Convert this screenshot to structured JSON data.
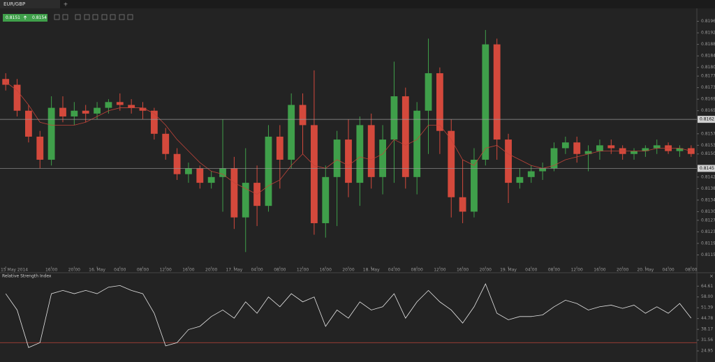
{
  "ui": {
    "tabs": [
      "EUR/GBP",
      "+"
    ],
    "quote": {
      "bid": "0.8151",
      "ask": "0.8154"
    }
  },
  "chart_data": [
    {
      "type": "candlestick",
      "up_color": "#3f9f4a",
      "down_color": "#d4493c",
      "ylim": [
        0.8111,
        0.82
      ],
      "yticks": [
        0.8196,
        0.8192,
        0.8188,
        0.8184,
        {
          "value": 0.818,
          "label": "0.8180"
        },
        0.8177,
        0.8173,
        0.8169,
        0.8165,
        0.8157,
        0.8153,
        {
          "value": 0.815,
          "label": "0.8150"
        },
        0.8142,
        0.8138,
        0.8134,
        {
          "value": 0.813,
          "label": "0.8130"
        },
        0.8127,
        0.8123,
        0.8119,
        0.8115
      ],
      "xticks": [
        {
          "value": 0,
          "label": "15 May 2014"
        },
        {
          "value": 4,
          "label": "16:00"
        },
        {
          "value": 6,
          "label": "20:00"
        },
        {
          "value": 8,
          "label": "16. May"
        },
        {
          "value": 10,
          "label": "04:00"
        },
        {
          "value": 12,
          "label": "08:00"
        },
        {
          "value": 14,
          "label": "12:00"
        },
        {
          "value": 16,
          "label": "16:00"
        },
        {
          "value": 18,
          "label": "20:00"
        },
        {
          "value": 20,
          "label": "17. May"
        },
        {
          "value": 22,
          "label": "04:00"
        },
        {
          "value": 24,
          "label": "08:00"
        },
        {
          "value": 26,
          "label": "12:00"
        },
        {
          "value": 28,
          "label": "16:00"
        },
        {
          "value": 30,
          "label": "20:00"
        },
        {
          "value": 32,
          "label": "18. May"
        },
        {
          "value": 34,
          "label": "04:00"
        },
        {
          "value": 36,
          "label": "08:00"
        },
        {
          "value": 38,
          "label": "12:00"
        },
        {
          "value": 40,
          "label": "16:00"
        },
        {
          "value": 42,
          "label": "20:00"
        },
        {
          "value": 44,
          "label": "19. May"
        },
        {
          "value": 46,
          "label": "04:00"
        },
        {
          "value": 48,
          "label": "08:00"
        },
        {
          "value": 50,
          "label": "12:00"
        },
        {
          "value": 52,
          "label": "16:00"
        },
        {
          "value": 54,
          "label": "20:00"
        },
        {
          "value": 56,
          "label": "20. May"
        },
        {
          "value": 58,
          "label": "04:00"
        },
        {
          "value": 60,
          "label": "08:00"
        }
      ],
      "price_lines": [
        0.8162,
        0.8145
      ],
      "open": [
        0.8176,
        0.8174,
        0.8165,
        0.8156,
        0.8148,
        0.8166,
        0.8163,
        0.8165,
        0.8164,
        0.8166,
        0.8168,
        0.8167,
        0.8166,
        0.8165,
        0.8157,
        0.815,
        0.8143,
        0.8145,
        0.814,
        0.8142,
        0.8145,
        0.8128,
        0.814,
        0.8132,
        0.8156,
        0.8148,
        0.8167,
        0.816,
        0.8126,
        0.8142,
        0.8155,
        0.814,
        0.816,
        0.8142,
        0.8155,
        0.817,
        0.8142,
        0.8165,
        0.8178,
        0.8158,
        0.8135,
        0.813,
        0.8148,
        0.8188,
        0.8155,
        0.814,
        0.8142,
        0.8144,
        0.8145,
        0.8152,
        0.8154,
        0.815,
        0.8151,
        0.8153,
        0.8152,
        0.815,
        0.8151,
        0.8152,
        0.8153,
        0.8151,
        0.8152
      ],
      "high": [
        0.8178,
        0.8176,
        0.8167,
        0.8158,
        0.817,
        0.817,
        0.8168,
        0.8167,
        0.8168,
        0.8169,
        0.8171,
        0.8169,
        0.8168,
        0.8166,
        0.8159,
        0.8152,
        0.8147,
        0.8146,
        0.8144,
        0.8162,
        0.8149,
        0.8152,
        0.8146,
        0.816,
        0.816,
        0.8171,
        0.8171,
        0.8179,
        0.8146,
        0.8158,
        0.8162,
        0.8163,
        0.8164,
        0.816,
        0.8182,
        0.8173,
        0.8168,
        0.819,
        0.818,
        0.8162,
        0.8148,
        0.8152,
        0.8193,
        0.819,
        0.8157,
        0.8145,
        0.8146,
        0.8147,
        0.8154,
        0.8156,
        0.8156,
        0.8153,
        0.8155,
        0.8155,
        0.8153,
        0.8152,
        0.8153,
        0.8155,
        0.8154,
        0.8153,
        0.8153
      ],
      "low": [
        0.8172,
        0.8163,
        0.8154,
        0.8145,
        0.8146,
        0.8161,
        0.816,
        0.8161,
        0.8162,
        0.8164,
        0.8165,
        0.8164,
        0.8162,
        0.8155,
        0.8148,
        0.8141,
        0.814,
        0.8138,
        0.8138,
        0.813,
        0.8124,
        0.8116,
        0.8125,
        0.813,
        0.8138,
        0.8145,
        0.815,
        0.8122,
        0.8121,
        0.8125,
        0.8135,
        0.8132,
        0.8138,
        0.8136,
        0.814,
        0.8138,
        0.8136,
        0.815,
        0.815,
        0.8128,
        0.8126,
        0.8128,
        0.8146,
        0.8148,
        0.8133,
        0.8138,
        0.814,
        0.8141,
        0.8144,
        0.815,
        0.8147,
        0.8144,
        0.8148,
        0.815,
        0.8148,
        0.8148,
        0.8149,
        0.815,
        0.815,
        0.8149,
        0.8149
      ],
      "close": [
        0.8174,
        0.8165,
        0.8156,
        0.8148,
        0.8166,
        0.8163,
        0.8165,
        0.8164,
        0.8166,
        0.8168,
        0.8167,
        0.8166,
        0.8165,
        0.8157,
        0.815,
        0.8143,
        0.8145,
        0.814,
        0.8142,
        0.8145,
        0.8128,
        0.814,
        0.8132,
        0.8156,
        0.8148,
        0.8167,
        0.816,
        0.8126,
        0.8142,
        0.8155,
        0.814,
        0.816,
        0.8142,
        0.8155,
        0.817,
        0.8142,
        0.8165,
        0.8178,
        0.8158,
        0.8135,
        0.813,
        0.8148,
        0.8188,
        0.8155,
        0.814,
        0.8142,
        0.8144,
        0.8145,
        0.8152,
        0.8154,
        0.815,
        0.8151,
        0.8153,
        0.8152,
        0.815,
        0.8151,
        0.8152,
        0.8153,
        0.8151,
        0.8152,
        0.815
      ],
      "ma": {
        "color": "#c0443a",
        "values": [
          0.8175,
          0.8172,
          0.8167,
          0.8161,
          0.816,
          0.816,
          0.816,
          0.8161,
          0.8163,
          0.8165,
          0.8166,
          0.8166,
          0.8166,
          0.8164,
          0.816,
          0.8155,
          0.8151,
          0.8147,
          0.8144,
          0.8143,
          0.814,
          0.8138,
          0.8136,
          0.8139,
          0.8141,
          0.8146,
          0.815,
          0.8146,
          0.8145,
          0.8148,
          0.8146,
          0.8149,
          0.8148,
          0.815,
          0.8155,
          0.8153,
          0.8155,
          0.816,
          0.816,
          0.8155,
          0.8148,
          0.8146,
          0.8152,
          0.8153,
          0.815,
          0.8148,
          0.8146,
          0.8145,
          0.8146,
          0.8148,
          0.8149,
          0.815,
          0.8151,
          0.8151,
          0.8151,
          0.8151,
          0.8151,
          0.8152,
          0.8152,
          0.8152,
          0.8151
        ]
      }
    },
    {
      "type": "line",
      "title": "Relative Strength Index",
      "color": "#e6e6e6",
      "ylim": [
        19,
        69
      ],
      "yticks": [
        64.61,
        {
          "value": 58,
          "label": "58.00"
        },
        51.39,
        44.78,
        38.17,
        31.56,
        24.95
      ],
      "level": 30,
      "level_color": "#c0443a",
      "values": [
        60,
        50,
        27,
        30,
        60,
        62,
        60,
        62,
        60,
        64,
        65,
        62,
        60,
        48,
        28,
        30,
        38,
        40,
        46,
        50,
        45,
        55,
        48,
        58,
        52,
        60,
        55,
        58,
        40,
        50,
        45,
        55,
        50,
        52,
        60,
        45,
        55,
        62,
        55,
        50,
        42,
        52,
        66,
        48,
        44,
        46,
        46,
        47,
        52,
        56,
        54,
        50,
        52,
        53,
        51,
        53,
        48,
        52,
        48,
        54,
        45
      ]
    }
  ]
}
